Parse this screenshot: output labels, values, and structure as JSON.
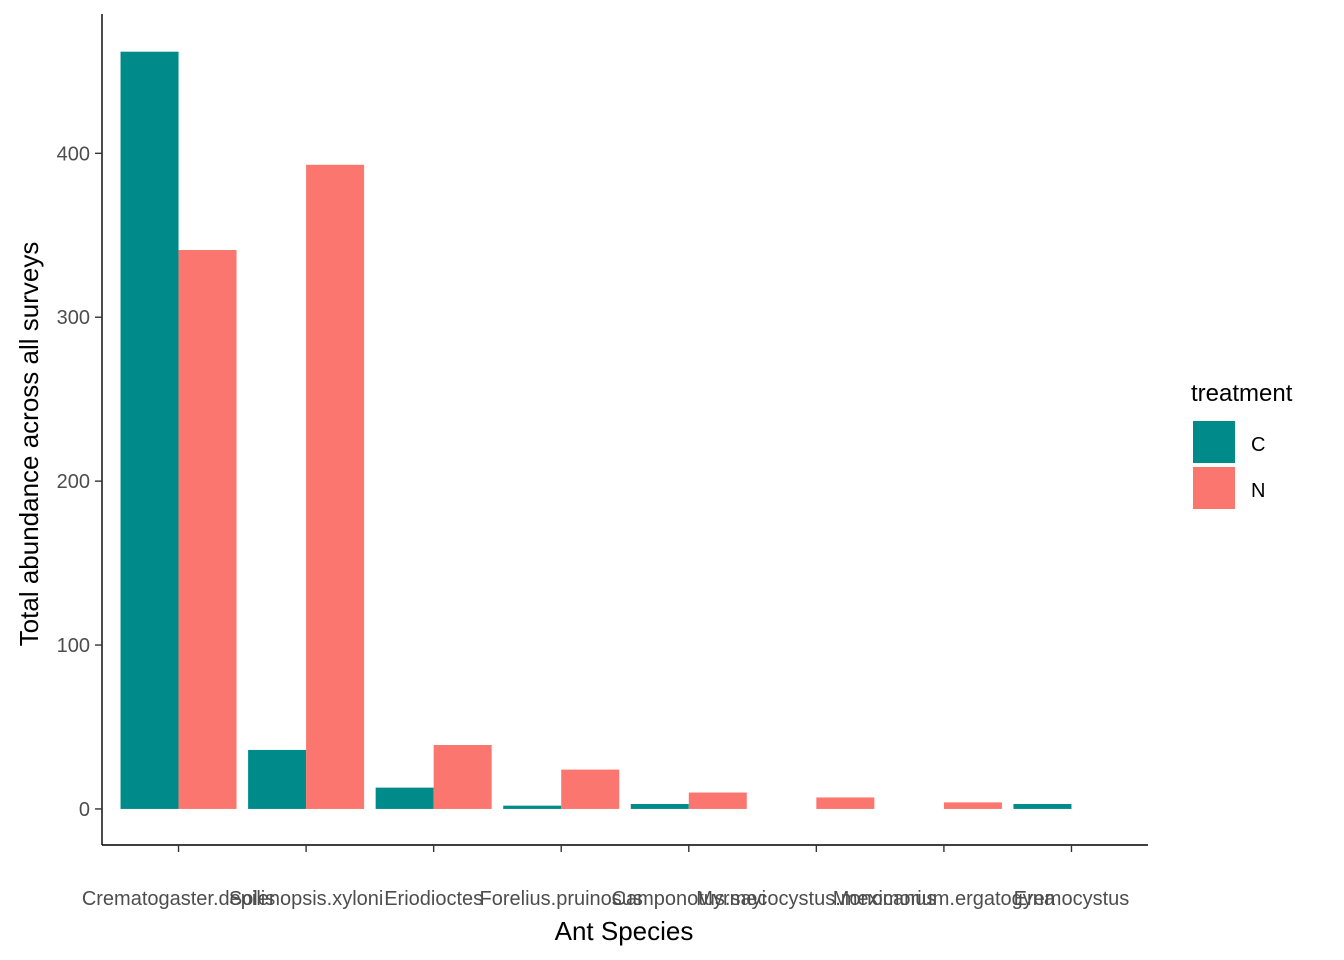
{
  "chart_data": {
    "type": "bar",
    "title": "",
    "xlabel": "Ant Species",
    "ylabel": "Total abundance across all surveys",
    "categories": [
      "Crematogaster.depilis",
      "Solenopsis.xyloni",
      "Eriodioctes",
      "Forelius.pruinosus",
      "Camponotus.sayi",
      "Myrmecocystus.mexicanus",
      "Monomorium.ergatogyna",
      "Eremocystus"
    ],
    "series": [
      {
        "name": "C",
        "color": "#008b8b",
        "values": [
          462,
          36,
          13,
          2,
          3,
          0,
          0,
          3
        ]
      },
      {
        "name": "N",
        "color": "#fa766e",
        "values": [
          341,
          393,
          39,
          24,
          10,
          7,
          4,
          0
        ]
      }
    ],
    "ylim": [
      -22,
      485
    ],
    "yticks": [
      0,
      100,
      200,
      300,
      400
    ],
    "grid": false,
    "legend": {
      "title": "treatment",
      "position": "right"
    }
  }
}
